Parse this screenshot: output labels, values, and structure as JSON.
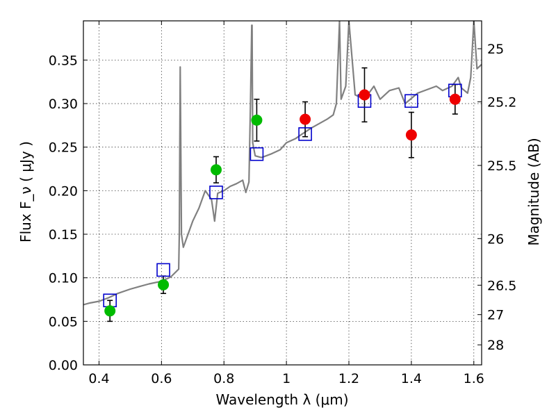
{
  "chart_data": {
    "type": "scatter",
    "title": "",
    "xlabel": "Wavelength  λ (μm)",
    "ylabel": "Flux  F_ν  ( μJy )",
    "ylabel_right": "Magnitude (AB)",
    "xlim": [
      0.35,
      1.625
    ],
    "ylim": [
      0.0,
      0.395
    ],
    "grid": true,
    "x_ticks": [
      0.4,
      0.6,
      0.8,
      1.0,
      1.2,
      1.4,
      1.6
    ],
    "x_tick_labels": [
      "0.4",
      "0.6",
      "0.8",
      "1",
      "1.2",
      "1.4",
      "1.6"
    ],
    "y_ticks": [
      0.0,
      0.05,
      0.1,
      0.15,
      0.2,
      0.25,
      0.3,
      0.35
    ],
    "y_tick_labels": [
      "0.00",
      "0.05",
      "0.10",
      "0.15",
      "0.20",
      "0.25",
      "0.30",
      "0.35"
    ],
    "right_ticks": [
      {
        "label": "25",
        "flux": 0.363
      },
      {
        "label": "25.2",
        "flux": 0.302
      },
      {
        "label": "25.5",
        "flux": 0.229
      },
      {
        "label": "26",
        "flux": 0.145
      },
      {
        "label": "26.5",
        "flux": 0.0915
      },
      {
        "label": "27",
        "flux": 0.0577
      },
      {
        "label": "28",
        "flux": 0.023
      }
    ],
    "series": [
      {
        "kind": "line",
        "color": "#808080",
        "x": [
          0.35,
          0.37,
          0.4,
          0.43,
          0.46,
          0.5,
          0.53,
          0.56,
          0.6,
          0.63,
          0.655,
          0.657,
          0.66,
          0.664,
          0.67,
          0.68,
          0.7,
          0.72,
          0.74,
          0.76,
          0.77,
          0.78,
          0.8,
          0.82,
          0.84,
          0.86,
          0.87,
          0.88,
          0.885,
          0.889,
          0.89,
          0.892,
          0.9,
          0.92,
          0.95,
          0.98,
          1.0,
          1.03,
          1.05,
          1.08,
          1.1,
          1.13,
          1.15,
          1.16,
          1.17,
          1.175,
          1.19,
          1.2,
          1.22,
          1.25,
          1.28,
          1.3,
          1.33,
          1.36,
          1.38,
          1.42,
          1.45,
          1.48,
          1.5,
          1.53,
          1.55,
          1.56,
          1.58,
          1.59,
          1.6,
          1.61,
          1.625
        ],
        "y": [
          0.069,
          0.071,
          0.073,
          0.077,
          0.082,
          0.087,
          0.09,
          0.093,
          0.096,
          0.101,
          0.11,
          0.15,
          0.342,
          0.15,
          0.135,
          0.145,
          0.165,
          0.18,
          0.2,
          0.19,
          0.165,
          0.197,
          0.2,
          0.205,
          0.208,
          0.212,
          0.198,
          0.21,
          0.3,
          0.39,
          0.39,
          0.255,
          0.24,
          0.238,
          0.242,
          0.247,
          0.255,
          0.26,
          0.265,
          0.272,
          0.276,
          0.282,
          0.287,
          0.3,
          0.395,
          0.305,
          0.32,
          0.395,
          0.31,
          0.305,
          0.32,
          0.305,
          0.315,
          0.318,
          0.3,
          0.312,
          0.316,
          0.32,
          0.315,
          0.32,
          0.33,
          0.318,
          0.312,
          0.33,
          0.395,
          0.34,
          0.345
        ]
      },
      {
        "kind": "model-photometry",
        "marker": "open-square",
        "color": "#0000cc",
        "x": [
          0.435,
          0.606,
          0.775,
          0.905,
          1.06,
          1.25,
          1.4,
          1.54
        ],
        "y": [
          0.074,
          0.109,
          0.198,
          0.242,
          0.265,
          0.303,
          0.303,
          0.315
        ]
      },
      {
        "kind": "observed-optical",
        "marker": "filled-circle",
        "color": "#00bb00",
        "x": [
          0.435,
          0.606,
          0.775,
          0.905
        ],
        "y": [
          0.062,
          0.092,
          0.224,
          0.281
        ],
        "yerr": [
          0.012,
          0.01,
          0.015,
          0.024
        ]
      },
      {
        "kind": "observed-nir",
        "marker": "filled-circle",
        "color": "#ee0000",
        "x": [
          1.06,
          1.25,
          1.4,
          1.54
        ],
        "y": [
          0.282,
          0.31,
          0.264,
          0.305
        ],
        "yerr": [
          0.02,
          0.031,
          0.026,
          0.017
        ]
      }
    ]
  }
}
